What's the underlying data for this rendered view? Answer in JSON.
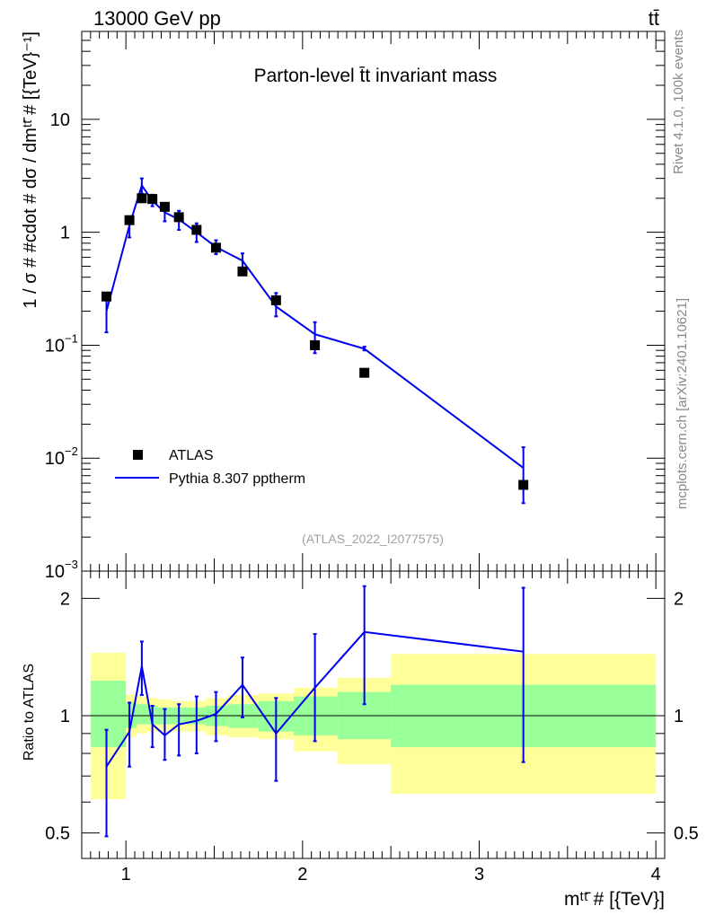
{
  "header": {
    "left": "13000 GeV pp",
    "right": "tt̄",
    "side_top": "Rivet 4.1.0,  100k events",
    "side_bottom": "mcplots.cern.ch [arXiv:2401.10621]"
  },
  "colors": {
    "mc": "#0000ee",
    "data": "#000000",
    "band_inner": "#99ff99",
    "band_outer": "#ffff99",
    "ref_id_text": "#a0a0a0"
  },
  "chart_data": [
    {
      "type": "line",
      "title": "Parton-level t̄t invariant mass",
      "ylabel": "1 / σ # #cdot # dσ / dmᵗᵗ̄ # [{TeV}⁻¹]",
      "yscale": "log",
      "ylim": [
        0.001,
        60
      ],
      "xlim": [
        0.75,
        4.05
      ],
      "y_tick_labels": [
        {
          "value": 10,
          "label": "10"
        },
        {
          "value": 1,
          "label": "1"
        },
        {
          "value": 0.1,
          "label": "10",
          "exp": "−1"
        },
        {
          "value": 0.01,
          "label": "10",
          "exp": "−2"
        },
        {
          "value": 0.001,
          "label": "10",
          "exp": "−3"
        }
      ],
      "ref_id": "(ATLAS_2022_I2077575)",
      "legend_position": "bottom-left",
      "series": [
        {
          "name": "ATLAS",
          "style": "markers",
          "x": [
            0.89,
            1.02,
            1.09,
            1.15,
            1.22,
            1.3,
            1.4,
            1.51,
            1.66,
            1.85,
            2.07,
            2.35,
            3.25
          ],
          "y": [
            0.27,
            1.28,
            2.0,
            1.97,
            1.68,
            1.36,
            1.05,
            0.73,
            0.45,
            0.25,
            0.1,
            0.057,
            0.0058
          ]
        },
        {
          "name": "Pythia 8.307 pptherm",
          "style": "line",
          "x": [
            0.89,
            1.02,
            1.09,
            1.15,
            1.22,
            1.3,
            1.4,
            1.51,
            1.66,
            1.85,
            2.07,
            2.35,
            3.25
          ],
          "y": [
            0.2,
            1.15,
            2.6,
            1.9,
            1.5,
            1.3,
            1.0,
            0.74,
            0.56,
            0.22,
            0.125,
            0.093,
            0.0082
          ],
          "err_low": [
            0.13,
            0.9,
            2.2,
            1.7,
            1.25,
            1.05,
            0.82,
            0.64,
            0.44,
            0.18,
            0.085,
            0.09,
            0.004
          ],
          "err_high": [
            0.27,
            1.35,
            3.0,
            2.15,
            1.75,
            1.55,
            1.2,
            0.85,
            0.65,
            0.29,
            0.16,
            0.097,
            0.0125
          ]
        }
      ]
    },
    {
      "type": "line",
      "ylabel": "Ratio to ATLAS",
      "xlabel": "mᵗᵗ̄ # [{TeV}]",
      "yscale": "log",
      "ylim": [
        0.43,
        2.35
      ],
      "xlim": [
        0.75,
        4.05
      ],
      "y_ticks": [
        {
          "value": 0.5,
          "label": "0.5"
        },
        {
          "value": 1,
          "label": "1"
        },
        {
          "value": 2,
          "label": "2"
        }
      ],
      "x_ticks": [
        {
          "value": 1,
          "label": "1"
        },
        {
          "value": 2,
          "label": "2"
        },
        {
          "value": 3,
          "label": "3"
        },
        {
          "value": 4,
          "label": "4"
        }
      ],
      "bands": [
        {
          "x0": 0.8,
          "x1": 1.0,
          "inner": [
            0.83,
            1.23
          ],
          "outer": [
            0.61,
            1.45
          ]
        },
        {
          "x0": 1.0,
          "x1": 1.06,
          "inner": [
            0.93,
            1.08
          ],
          "outer": [
            0.88,
            1.13
          ]
        },
        {
          "x0": 1.06,
          "x1": 1.12,
          "inner": [
            0.95,
            1.07
          ],
          "outer": [
            0.9,
            1.12
          ]
        },
        {
          "x0": 1.12,
          "x1": 1.18,
          "inner": [
            0.95,
            1.06
          ],
          "outer": [
            0.91,
            1.11
          ]
        },
        {
          "x0": 1.18,
          "x1": 1.26,
          "inner": [
            0.95,
            1.05
          ],
          "outer": [
            0.91,
            1.1
          ]
        },
        {
          "x0": 1.26,
          "x1": 1.34,
          "inner": [
            0.95,
            1.05
          ],
          "outer": [
            0.91,
            1.09
          ]
        },
        {
          "x0": 1.34,
          "x1": 1.45,
          "inner": [
            0.95,
            1.05
          ],
          "outer": [
            0.91,
            1.09
          ]
        },
        {
          "x0": 1.45,
          "x1": 1.58,
          "inner": [
            0.94,
            1.06
          ],
          "outer": [
            0.89,
            1.11
          ]
        },
        {
          "x0": 1.58,
          "x1": 1.75,
          "inner": [
            0.93,
            1.07
          ],
          "outer": [
            0.88,
            1.13
          ]
        },
        {
          "x0": 1.75,
          "x1": 1.95,
          "inner": [
            0.91,
            1.09
          ],
          "outer": [
            0.87,
            1.14
          ]
        },
        {
          "x0": 1.95,
          "x1": 2.2,
          "inner": [
            0.89,
            1.12
          ],
          "outer": [
            0.81,
            1.18
          ]
        },
        {
          "x0": 2.2,
          "x1": 2.5,
          "inner": [
            0.87,
            1.15
          ],
          "outer": [
            0.75,
            1.25
          ]
        },
        {
          "x0": 2.5,
          "x1": 4.0,
          "inner": [
            0.83,
            1.2
          ],
          "outer": [
            0.63,
            1.44
          ]
        }
      ],
      "series": [
        {
          "name": "Pythia 8.307 pptherm / ATLAS",
          "x": [
            0.89,
            1.02,
            1.09,
            1.15,
            1.22,
            1.3,
            1.4,
            1.51,
            1.66,
            1.85,
            2.07,
            2.35,
            3.25
          ],
          "y": [
            0.74,
            0.91,
            1.34,
            0.95,
            0.89,
            0.95,
            0.97,
            1.01,
            1.2,
            0.9,
            1.18,
            1.64,
            1.46
          ],
          "err_low": [
            0.49,
            0.74,
            1.13,
            0.83,
            0.77,
            0.79,
            0.8,
            0.86,
            0.99,
            0.68,
            0.86,
            1.07,
            0.76
          ],
          "err_high": [
            0.92,
            1.08,
            1.55,
            1.06,
            1.04,
            1.07,
            1.12,
            1.15,
            1.41,
            1.11,
            1.62,
            2.15,
            2.13
          ]
        }
      ]
    }
  ]
}
